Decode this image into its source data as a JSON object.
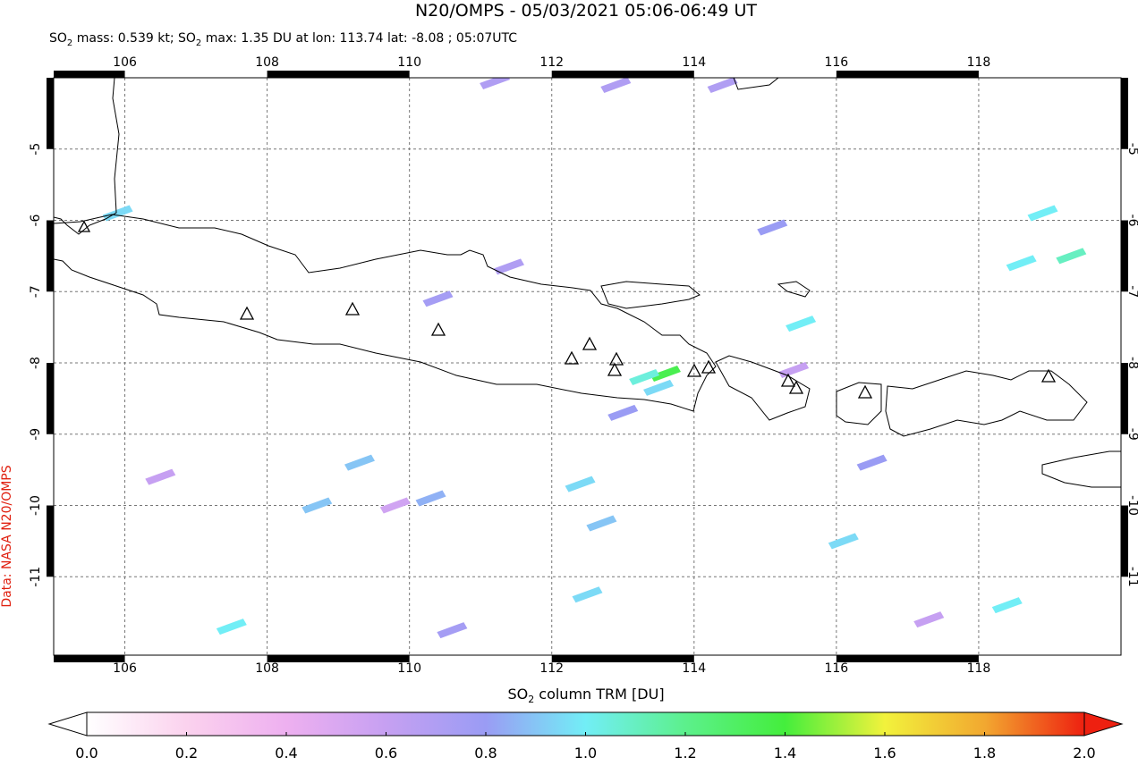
{
  "header": {
    "title": "N20/OMPS - 05/03/2021 05:06-06:49 UT",
    "subtitle": [
      "SO",
      "2",
      " mass: 0.539 kt; SO",
      "2",
      " max: 1.35 DU at lon: 113.74 lat: -8.08 ; 05:07UTC"
    ]
  },
  "credit": "Data: NASA N20/OMPS",
  "map": {
    "lon_range": [
      105,
      120
    ],
    "lat_range": [
      -4,
      -12.1
    ],
    "lon_ticks": [
      106,
      108,
      110,
      112,
      114,
      116,
      118
    ],
    "lat_ticks": [
      -5,
      -6,
      -7,
      -8,
      -9,
      -10,
      -11
    ],
    "pixels": [
      [
        113.6,
        -8.15,
        1.35
      ],
      [
        113.3,
        -8.2,
        1.05
      ],
      [
        113.5,
        -8.35,
        0.95
      ],
      [
        112.4,
        -9.7,
        0.95
      ],
      [
        112.7,
        -10.25,
        0.9
      ],
      [
        109.3,
        -9.4,
        0.9
      ],
      [
        110.4,
        -7.1,
        0.75
      ],
      [
        110.3,
        -9.9,
        0.85
      ],
      [
        115.1,
        -6.1,
        0.8
      ],
      [
        119.3,
        -6.5,
        1.1
      ],
      [
        118.6,
        -6.6,
        1.0
      ],
      [
        118.9,
        -5.9,
        1.0
      ],
      [
        115.5,
        -7.45,
        1.0
      ],
      [
        116.1,
        -10.5,
        0.95
      ],
      [
        118.4,
        -11.4,
        1.0
      ],
      [
        107.5,
        -11.7,
        1.0
      ],
      [
        110.6,
        -11.75,
        0.75
      ],
      [
        112.5,
        -11.25,
        0.95
      ],
      [
        108.7,
        -10.0,
        0.9
      ],
      [
        112.9,
        -4.1,
        0.7
      ],
      [
        114.4,
        -4.1,
        0.7
      ],
      [
        111.2,
        -4.05,
        0.7
      ],
      [
        105.9,
        -5.9,
        0.95
      ],
      [
        115.4,
        -8.1,
        0.6
      ],
      [
        113.0,
        -8.7,
        0.8
      ],
      [
        116.5,
        -9.4,
        0.8
      ],
      [
        111.4,
        -6.65,
        0.7
      ],
      [
        109.8,
        -10.0,
        0.55
      ],
      [
        117.3,
        -11.6,
        0.6
      ],
      [
        106.5,
        -9.6,
        0.6
      ]
    ]
  },
  "colorbar": {
    "label": [
      "SO",
      "2",
      " column TRM [DU]"
    ],
    "ticks": [
      {
        "value": 0,
        "label": "0.0"
      },
      {
        "value": 0.2,
        "label": "0.2"
      },
      {
        "value": 0.4,
        "label": "0.4"
      },
      {
        "value": 0.6,
        "label": "0.6"
      },
      {
        "value": 0.8,
        "label": "0.8"
      },
      {
        "value": 1,
        "label": "1.0"
      },
      {
        "value": 1.2,
        "label": "1.2"
      },
      {
        "value": 1.4,
        "label": "1.4"
      },
      {
        "value": 1.6,
        "label": "1.6"
      },
      {
        "value": 1.8,
        "label": "1.8"
      },
      {
        "value": 2,
        "label": "2.0"
      }
    ]
  }
}
